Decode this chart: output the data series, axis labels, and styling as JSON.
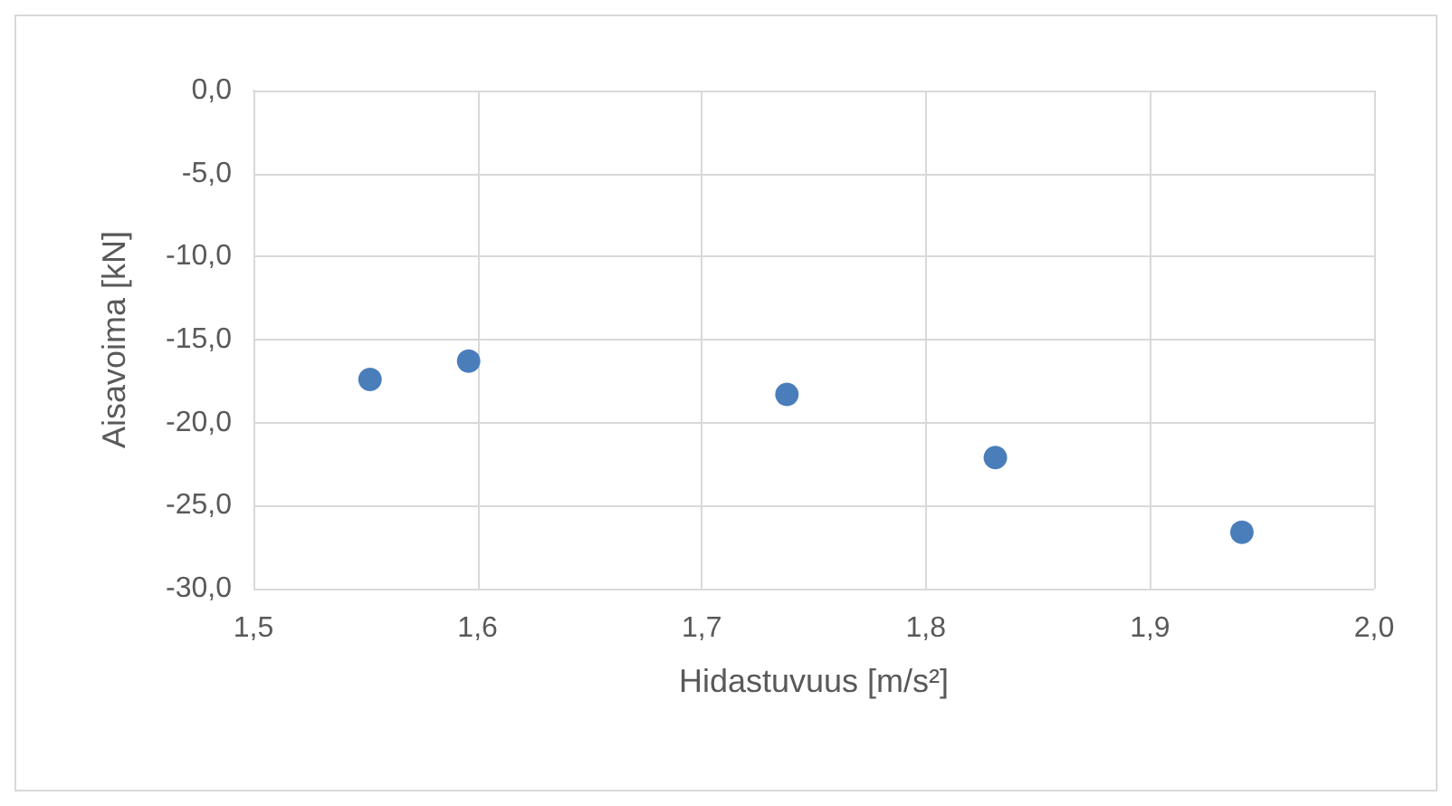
{
  "chart_data": {
    "type": "scatter",
    "xlabel": "Hidastuvuus [m/s²]",
    "ylabel": "Aisavoima [kN]",
    "x": [
      1.552,
      1.596,
      1.738,
      1.831,
      1.941
    ],
    "series": [
      {
        "color": "#4a7ebb",
        "values": [
          -17.4,
          -16.3,
          -18.3,
          -22.1,
          -26.6
        ]
      }
    ],
    "xlim": [
      1.5,
      2.0
    ],
    "xticks": [
      {
        "value": 1.5,
        "label": "1,5"
      },
      {
        "value": 1.6,
        "label": "1,6"
      },
      {
        "value": 1.7,
        "label": "1,7"
      },
      {
        "value": 1.8,
        "label": "1,8"
      },
      {
        "value": 1.9,
        "label": "1,9"
      },
      {
        "value": 2.0,
        "label": "2,0"
      }
    ],
    "ylim": [
      -30,
      0
    ],
    "yticks": [
      {
        "value": -30,
        "label": "-30,0"
      },
      {
        "value": -25,
        "label": "-25,0"
      },
      {
        "value": -20,
        "label": "-20,0"
      },
      {
        "value": -15,
        "label": "-15,0"
      },
      {
        "value": -10,
        "label": "-10,0"
      },
      {
        "value": -5,
        "label": "-5,0"
      },
      {
        "value": 0,
        "label": "0,0"
      }
    ],
    "grid": true,
    "marker": "circle"
  }
}
